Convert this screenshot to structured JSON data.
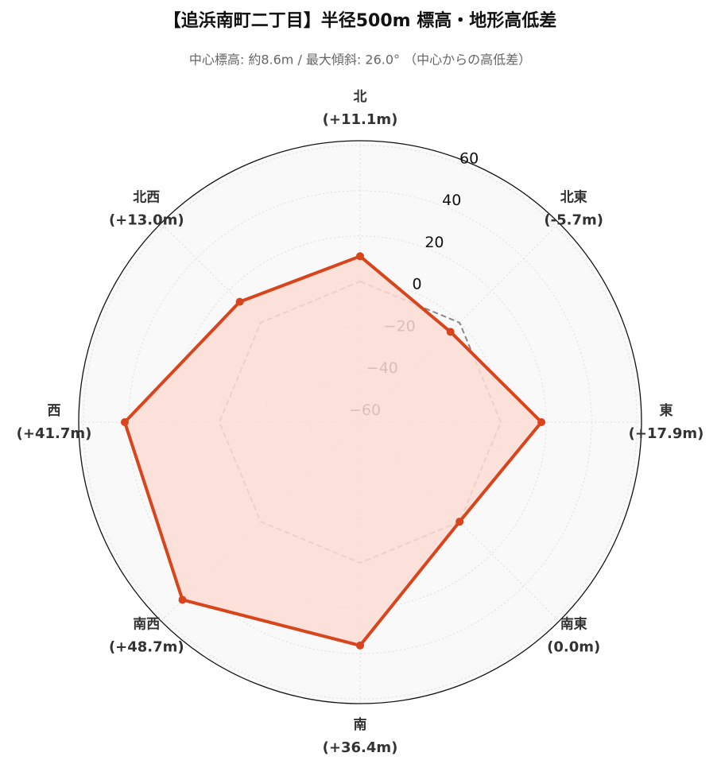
{
  "chart_data": {
    "type": "radar",
    "title": "【追浜南町二丁目】半径500m 標高・地形高低差",
    "subtitle": "中心標高: 約8.6m / 最大傾斜: 26.0° （中心からの高低差）",
    "categories": [
      "北",
      "北東",
      "東",
      "南東",
      "南",
      "南西",
      "西",
      "北西"
    ],
    "values": [
      11.1,
      -5.7,
      17.9,
      0.0,
      36.4,
      48.7,
      41.7,
      13.0
    ],
    "value_labels": [
      "(+11.1m)",
      "(-5.7m)",
      "(+17.9m)",
      "(0.0m)",
      "(+36.4m)",
      "(+48.7m)",
      "(+41.7m)",
      "(+13.0m)"
    ],
    "color": "#d8441c",
    "fill": "#fcddd5",
    "baseline": 0,
    "baseline_color": "#888888",
    "rlim": [
      -62,
      62
    ],
    "rticks": [
      {
        "value": -60,
        "label": "−60"
      },
      {
        "value": -40,
        "label": "−40"
      },
      {
        "value": -20,
        "label": "−20"
      },
      0,
      20,
      40,
      60
    ],
    "grid": true
  }
}
